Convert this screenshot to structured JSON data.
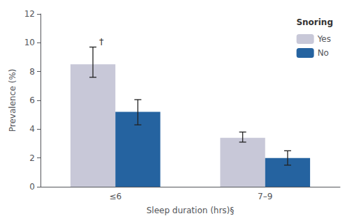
{
  "chart_data": {
    "type": "bar",
    "categories": [
      "≤6",
      "7–9"
    ],
    "series": [
      {
        "name": "Yes",
        "color": "#c8c8d8",
        "values": [
          8.5,
          3.4
        ],
        "error_lower": [
          0.9,
          0.3
        ],
        "error_upper": [
          1.2,
          0.4
        ]
      },
      {
        "name": "No",
        "color": "#2563a0",
        "values": [
          5.2,
          2.0
        ],
        "error_lower": [
          0.9,
          0.5
        ],
        "error_upper": [
          0.85,
          0.5
        ]
      }
    ],
    "xlabel": "Sleep duration (hrs)§",
    "ylabel": "Prevalence (%)",
    "ylim": [
      0,
      12
    ],
    "yticks": [
      0,
      2,
      4,
      6,
      8,
      10,
      12
    ],
    "grid": false,
    "legend": "upper right",
    "legend_title": "Snoring",
    "annotations": [
      {
        "text": "†",
        "series": "Yes",
        "category": "≤6"
      }
    ]
  }
}
